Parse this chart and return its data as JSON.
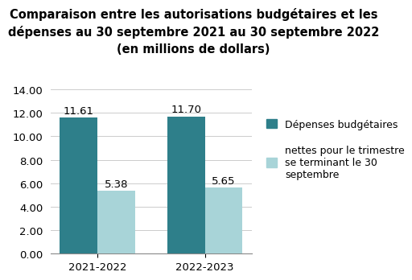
{
  "title_line1": "Comparaison entre les autorisations budgétaires et les",
  "title_line2": "dépenses au 30 septembre 2021 au 30 septembre 2022",
  "title_line3": "(en millions de dollars)",
  "categories": [
    "2021-2022",
    "2022-2023"
  ],
  "series1_values": [
    11.61,
    11.7
  ],
  "series2_values": [
    5.38,
    5.65
  ],
  "series1_color": "#2e7f8a",
  "series2_color": "#a8d4d8",
  "legend1": "Dépenses budgétaires",
  "legend2": "nettes pour le trimestre\nse terminant le 30\nseptembre",
  "ylim": [
    0,
    14.0
  ],
  "yticks": [
    0.0,
    2.0,
    4.0,
    6.0,
    8.0,
    10.0,
    12.0,
    14.0
  ],
  "bar_width": 0.35,
  "background_color": "#ffffff",
  "title_fontsize": 10.5,
  "label_fontsize": 9.5,
  "tick_fontsize": 9.5,
  "legend_fontsize": 9
}
